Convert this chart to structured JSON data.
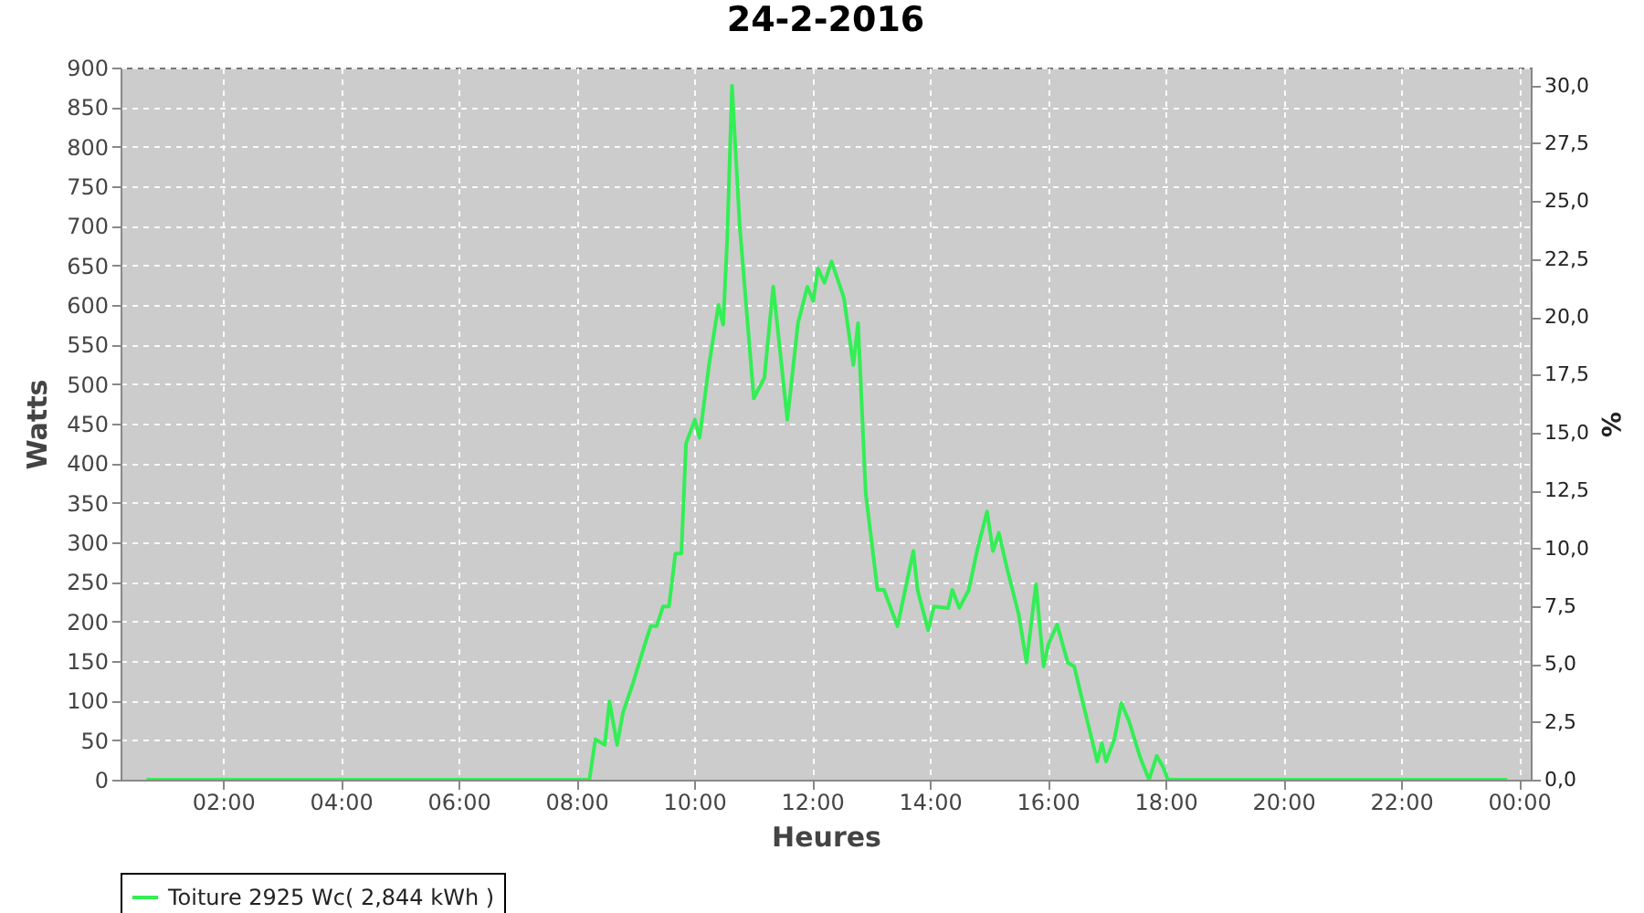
{
  "chart_data": {
    "type": "line",
    "title": "24-2-2016",
    "xlabel": "Heures",
    "ylabel": "Watts",
    "y2label": "%",
    "x": [
      0.7,
      8.22,
      8.32,
      8.48,
      8.56,
      8.69,
      8.79,
      8.95,
      9.16,
      9.26,
      9.36,
      9.47,
      9.57,
      9.68,
      9.78,
      9.86,
      10.01,
      10.09,
      10.25,
      10.41,
      10.49,
      10.56,
      10.64,
      10.77,
      10.88,
      11.01,
      11.19,
      11.34,
      11.58,
      11.76,
      11.92,
      12.02,
      12.1,
      12.21,
      12.33,
      12.54,
      12.7,
      12.78,
      12.91,
      13.11,
      13.22,
      13.45,
      13.58,
      13.72,
      13.79,
      13.97,
      14.07,
      14.31,
      14.38,
      14.5,
      14.66,
      14.8,
      14.97,
      15.07,
      15.17,
      15.3,
      15.51,
      15.64,
      15.8,
      15.93,
      16.01,
      16.16,
      16.34,
      16.45,
      16.66,
      16.84,
      16.92,
      16.99,
      17.13,
      17.25,
      17.38,
      17.57,
      17.72,
      17.85,
      17.96,
      18.04,
      23.8
    ],
    "series": [
      {
        "name": "Toiture 2925 Wc( 2,844 kWh )",
        "color": "#33ee55",
        "values": [
          0,
          0,
          51,
          44,
          99,
          44,
          85,
          120,
          171,
          194,
          194,
          219,
          219,
          286,
          286,
          425,
          455,
          432,
          524,
          600,
          575,
          685,
          877,
          701,
          600,
          482,
          508,
          623,
          455,
          577,
          623,
          605,
          646,
          628,
          655,
          609,
          524,
          577,
          362,
          240,
          240,
          194,
          240,
          289,
          240,
          189,
          219,
          217,
          240,
          217,
          240,
          289,
          339,
          289,
          312,
          270,
          208,
          148,
          247,
          143,
          171,
          196,
          148,
          143,
          78,
          23,
          46,
          23,
          51,
          97,
          74,
          28,
          0,
          30,
          16,
          0,
          0
        ]
      }
    ],
    "xlim": [
      0.26,
      24.2
    ],
    "xticks": [
      {
        "value": 2,
        "label": "02:00"
      },
      {
        "value": 4,
        "label": "04:00"
      },
      {
        "value": 6,
        "label": "06:00"
      },
      {
        "value": 8,
        "label": "08:00"
      },
      {
        "value": 10,
        "label": "10:00"
      },
      {
        "value": 12,
        "label": "12:00"
      },
      {
        "value": 14,
        "label": "14:00"
      },
      {
        "value": 16,
        "label": "16:00"
      },
      {
        "value": 18,
        "label": "18:00"
      },
      {
        "value": 20,
        "label": "20:00"
      },
      {
        "value": 22,
        "label": "22:00"
      },
      {
        "value": 24,
        "label": "00:00"
      }
    ],
    "ylim": [
      0,
      900
    ],
    "yticks": [
      0,
      50,
      100,
      150,
      200,
      250,
      300,
      350,
      400,
      450,
      500,
      550,
      600,
      650,
      700,
      750,
      800,
      850,
      900
    ],
    "y2lim": [
      0,
      30.77
    ],
    "y2ticks": [
      {
        "value": 0,
        "label": "0,0"
      },
      {
        "value": 2.5,
        "label": "2,5"
      },
      {
        "value": 5,
        "label": "5,0"
      },
      {
        "value": 7.5,
        "label": "7,5"
      },
      {
        "value": 10,
        "label": "10,0"
      },
      {
        "value": 12.5,
        "label": "12,5"
      },
      {
        "value": 15,
        "label": "15,0"
      },
      {
        "value": 17.5,
        "label": "17,5"
      },
      {
        "value": 20,
        "label": "20,0"
      },
      {
        "value": 22.5,
        "label": "22,5"
      },
      {
        "value": 25,
        "label": "25,0"
      },
      {
        "value": 27.5,
        "label": "27,5"
      },
      {
        "value": 30,
        "label": "30,0"
      }
    ],
    "grid": true,
    "legend": "bottom",
    "line_style": "solid"
  }
}
